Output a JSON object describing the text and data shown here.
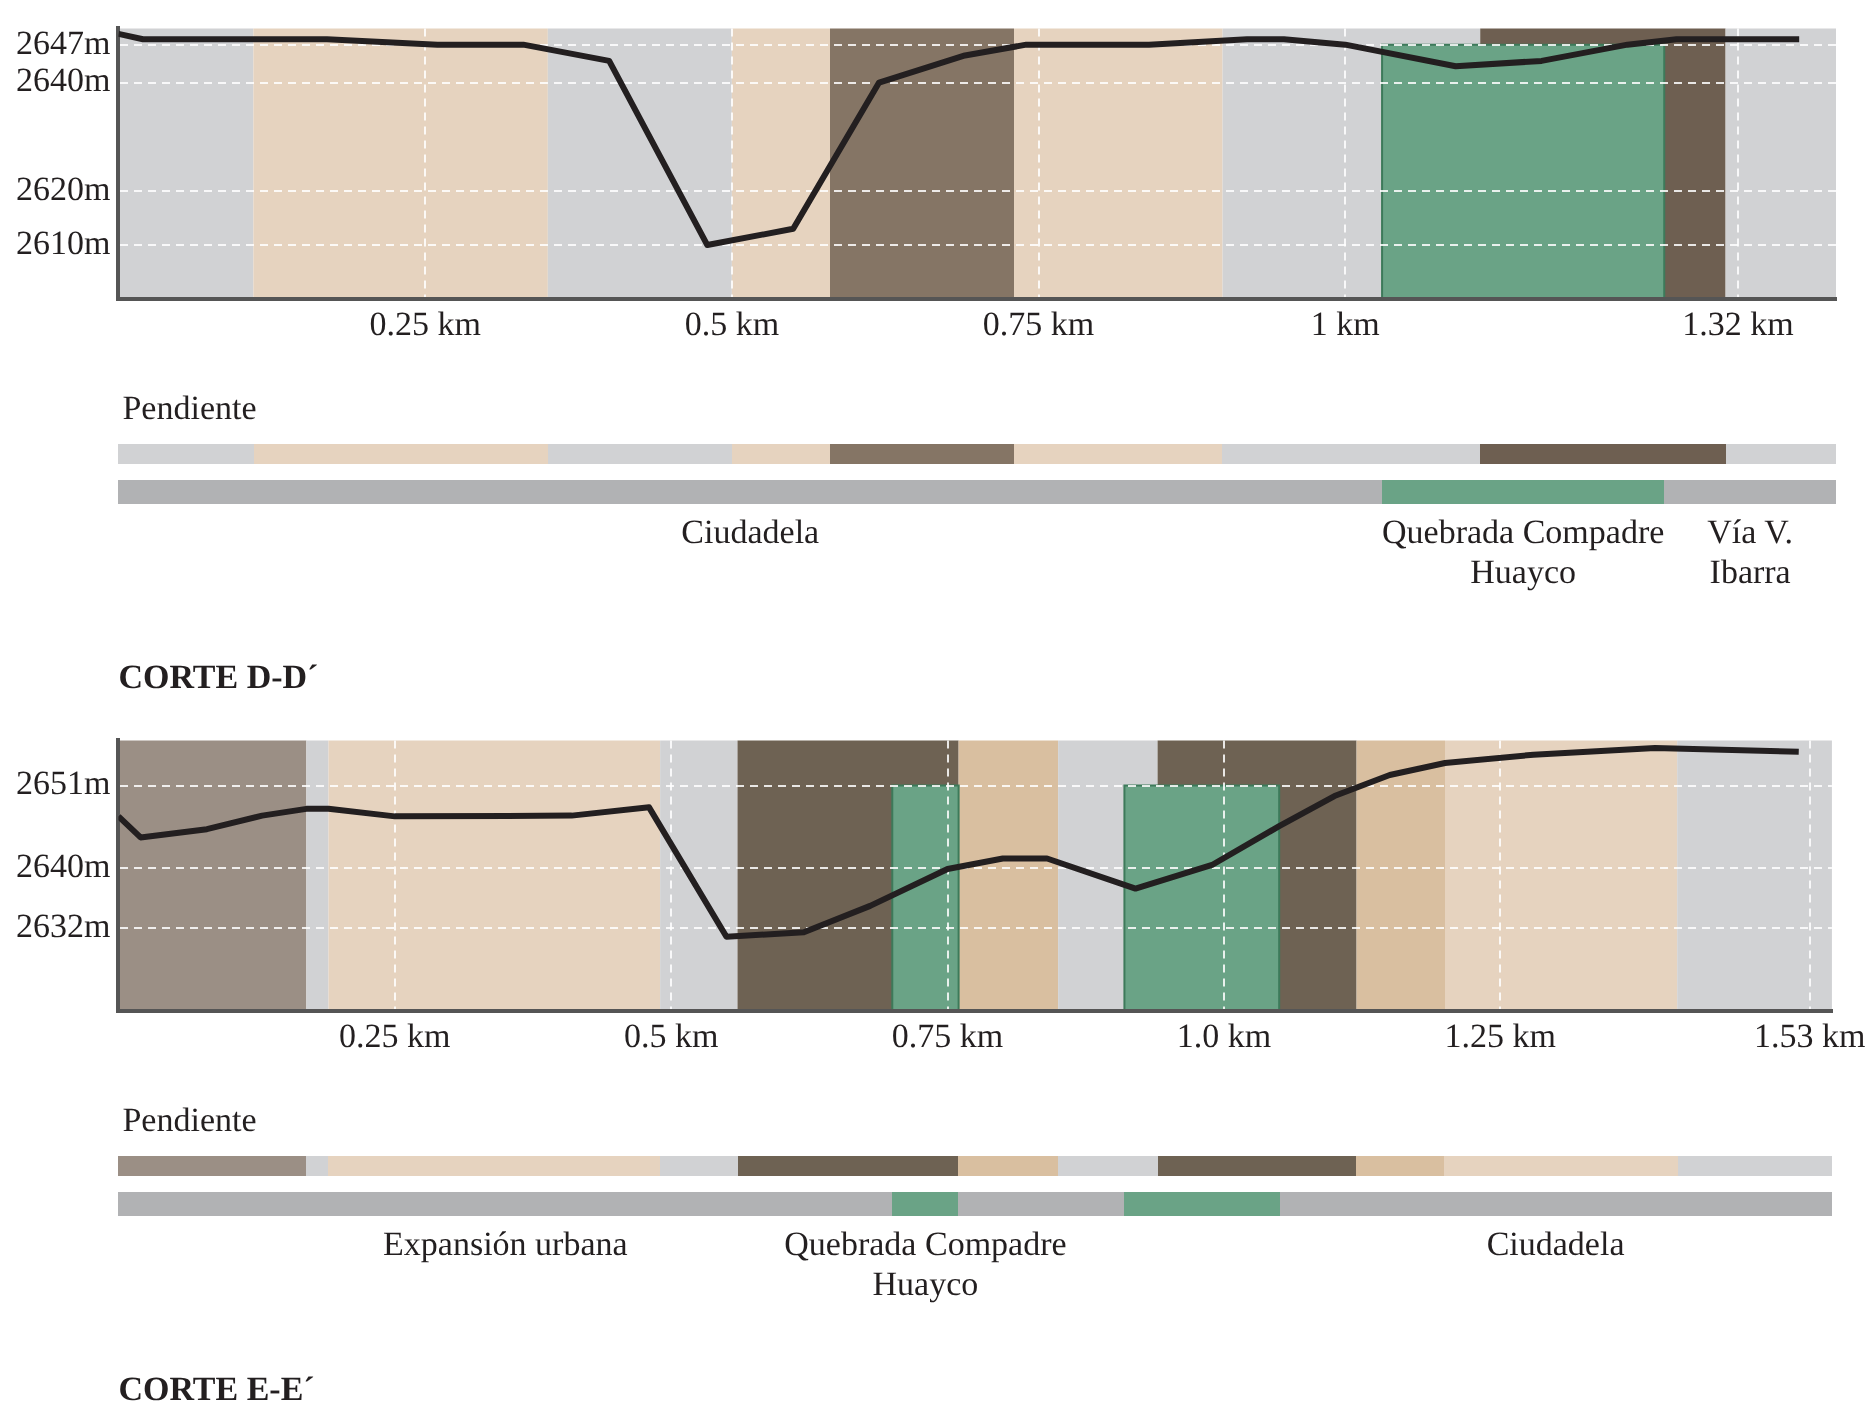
{
  "chart_data": [
    {
      "type": "line",
      "title": "CORTE D-D´",
      "annotations": [
        "Pendiente",
        "Ciudadela",
        "Quebrada Compadre Huayco",
        "Vía V. Ibarra"
      ],
      "x": [
        0,
        0.02,
        0.11,
        0.17,
        0.26,
        0.33,
        0.4,
        0.48,
        0.55,
        0.62,
        0.69,
        0.74,
        0.84,
        0.92,
        0.95,
        1.0,
        1.09,
        1.16,
        1.23,
        1.27,
        1.32,
        1.37
      ],
      "series": [
        {
          "color": "#231f20",
          "values": [
            2649,
            2648,
            2648,
            2648,
            2647,
            2647,
            2644,
            2610,
            2613,
            2640,
            2645,
            2647,
            2647,
            2648,
            2648,
            2647,
            2643,
            2644,
            2647,
            2648,
            2648,
            2648
          ]
        }
      ],
      "xlim": [
        0,
        1.4
      ],
      "xticks": [
        {
          "value": 0.25,
          "label": "0.25 km"
        },
        {
          "value": 0.5,
          "label": "0.5 km"
        },
        {
          "value": 0.75,
          "label": "0.75 km"
        },
        {
          "value": 1,
          "label": "1 km"
        },
        {
          "value": 1.32,
          "label": "1.32 km"
        }
      ],
      "ylim": [
        2600,
        2650
      ],
      "yticks": [
        {
          "value": 2610,
          "label": "2610m"
        },
        {
          "value": 2620,
          "label": "2620m"
        },
        {
          "value": 2640,
          "label": "2640m"
        },
        {
          "value": 2647,
          "label": "2647m"
        }
      ],
      "grid": true,
      "line_style": "solid",
      "bands": [
        {
          "axis": "x",
          "from": 0,
          "to": 0.11,
          "color": "#d1d2d4"
        },
        {
          "axis": "x",
          "from": 0.11,
          "to": 0.35,
          "color": "#e6d3bf"
        },
        {
          "axis": "x",
          "from": 0.35,
          "to": 0.5,
          "color": "#d1d2d4"
        },
        {
          "axis": "x",
          "from": 0.5,
          "to": 0.58,
          "color": "#e6d3bf"
        },
        {
          "axis": "x",
          "from": 0.58,
          "to": 0.73,
          "color": "#857565"
        },
        {
          "axis": "x",
          "from": 0.73,
          "to": 0.9,
          "color": "#e6d3bf"
        },
        {
          "axis": "x",
          "from": 0.9,
          "to": 1.11,
          "color": "#d1d2d4"
        },
        {
          "axis": "x",
          "from": 1.11,
          "to": 1.31,
          "color": "#6e5f51"
        },
        {
          "axis": "x",
          "from": 1.31,
          "to": 1.4,
          "color": "#d1d2d4"
        },
        {
          "axis": "x",
          "from": 1.03,
          "to": 1.26,
          "color": "#6aa386"
        }
      ]
    },
    {
      "type": "line",
      "title": "CORTE E-E´",
      "annotations": [
        "Pendiente",
        "Expansión urbana",
        "Quebrada Compadre Huayco",
        "Ciudadela"
      ],
      "x": [
        0,
        0.02,
        0.08,
        0.13,
        0.17,
        0.19,
        0.25,
        0.41,
        0.48,
        0.55,
        0.62,
        0.68,
        0.75,
        0.8,
        0.84,
        0.92,
        0.99,
        1.05,
        1.1,
        1.15,
        1.2,
        1.28,
        1.39,
        1.52
      ],
      "series": [
        {
          "color": "#231f20",
          "values": [
            2646.9,
            2644.1,
            2645.2,
            2647,
            2647.9,
            2647.9,
            2646.9,
            2647,
            2648.1,
            2630.9,
            2631.5,
            2635,
            2639.9,
            2641.3,
            2641.3,
            2637.3,
            2640.5,
            2645.6,
            2649.6,
            2652.4,
            2654,
            2655.1,
            2656,
            2655.5
          ]
        }
      ],
      "xlim": [
        0,
        1.55
      ],
      "xticks": [
        {
          "value": 0.25,
          "label": "0.25 km"
        },
        {
          "value": 0.5,
          "label": "0.5 km"
        },
        {
          "value": 0.75,
          "label": "0.75 km"
        },
        {
          "value": 1,
          "label": "1.0 km"
        },
        {
          "value": 1.25,
          "label": "1.25 km"
        },
        {
          "value": 1.53,
          "label": "1.53 km"
        }
      ],
      "ylim": [
        2621,
        2657
      ],
      "yticks": [
        {
          "value": 2632,
          "label": "2632m"
        },
        {
          "value": 2640,
          "label": "2640m"
        },
        {
          "value": 2651,
          "label": "2651m"
        }
      ],
      "grid": true,
      "line_style": "solid",
      "bands": [
        {
          "axis": "x",
          "from": 0,
          "to": 0.17,
          "color": "#9b8f85"
        },
        {
          "axis": "x",
          "from": 0.17,
          "to": 0.19,
          "color": "#d1d2d4"
        },
        {
          "axis": "x",
          "from": 0.19,
          "to": 0.49,
          "color": "#e6d3bf"
        },
        {
          "axis": "x",
          "from": 0.49,
          "to": 0.56,
          "color": "#d1d2d4"
        },
        {
          "axis": "x",
          "from": 0.56,
          "to": 0.76,
          "color": "#6e6253"
        },
        {
          "axis": "x",
          "from": 0.76,
          "to": 0.85,
          "color": "#d9bfa0"
        },
        {
          "axis": "x",
          "from": 0.85,
          "to": 0.94,
          "color": "#d1d2d4"
        },
        {
          "axis": "x",
          "from": 0.94,
          "to": 1.12,
          "color": "#6e6253"
        },
        {
          "axis": "x",
          "from": 1.12,
          "to": 1.2,
          "color": "#d9bfa0"
        },
        {
          "axis": "x",
          "from": 1.2,
          "to": 1.41,
          "color": "#e6d3bf"
        },
        {
          "axis": "x",
          "from": 1.41,
          "to": 1.55,
          "color": "#d1d2d4"
        },
        {
          "axis": "x",
          "from": 0.7,
          "to": 0.76,
          "color": "#6aa386"
        },
        {
          "axis": "x",
          "from": 0.91,
          "to": 1.05,
          "color": "#6aa386"
        }
      ]
    }
  ]
}
